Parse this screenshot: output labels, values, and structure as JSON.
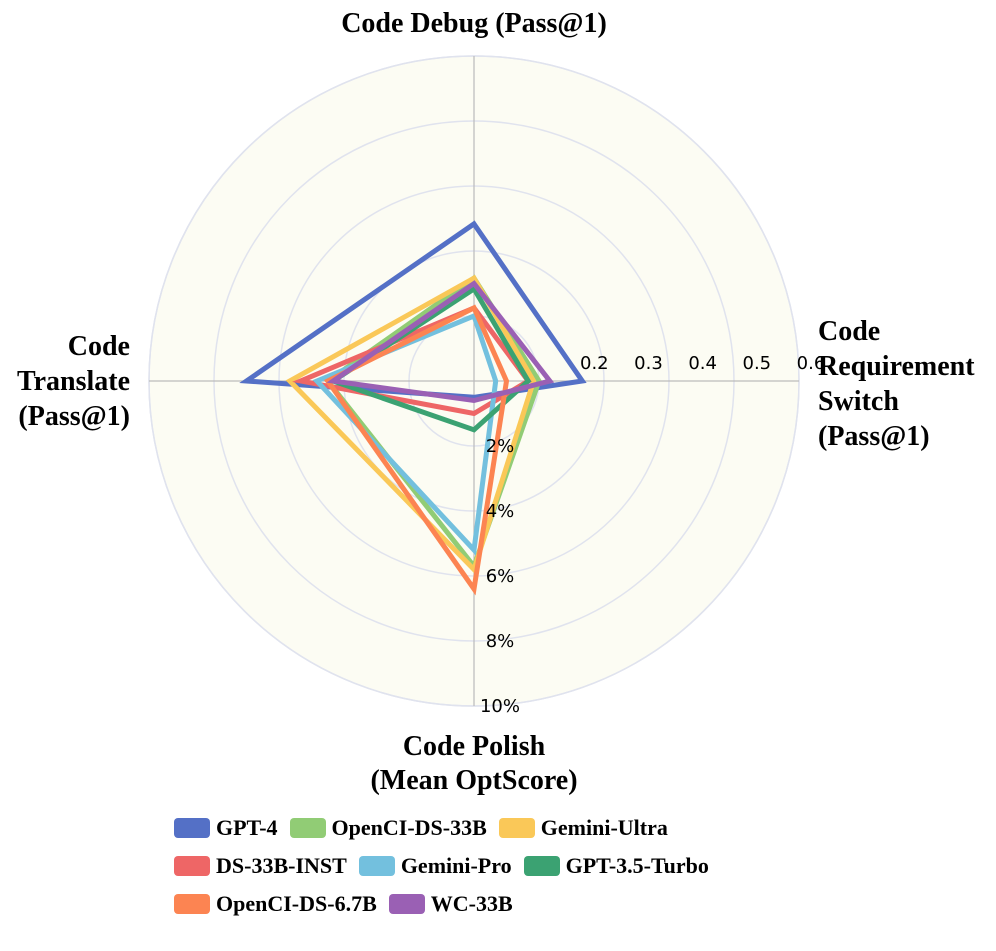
{
  "chart_data": {
    "type": "radar",
    "axes": [
      {
        "key": "debug",
        "label_lines": [
          "Code Debug (Pass@1)"
        ]
      },
      {
        "key": "switch",
        "label_lines": [
          "Code",
          "Requirement",
          "Switch",
          "(Pass@1)"
        ]
      },
      {
        "key": "polish",
        "label_lines": [
          "Code Polish",
          "(Mean OptScore)"
        ]
      },
      {
        "key": "translate",
        "label_lines": [
          "Code",
          "Translate",
          "(Pass@1)"
        ]
      }
    ],
    "radial_ticks_pass": [
      "0.2",
      "0.3",
      "0.4",
      "0.5",
      "0.6"
    ],
    "radial_ticks_polish": [
      "2%",
      "4%",
      "6%",
      "8%",
      "10%"
    ],
    "ranges": {
      "debug": [
        0,
        0.6
      ],
      "switch": [
        0,
        0.6
      ],
      "polish": [
        0,
        10
      ],
      "translate": [
        0,
        0.6
      ]
    },
    "series": [
      {
        "name": "GPT-4",
        "color": "#5470C6",
        "values": {
          "debug": 0.29,
          "switch": 0.2,
          "polish": 0.5,
          "translate": 0.42
        }
      },
      {
        "name": "OpenCI-DS-33B",
        "color": "#91CC75",
        "values": {
          "debug": 0.19,
          "switch": 0.12,
          "polish": 5.7,
          "translate": 0.27
        }
      },
      {
        "name": "Gemini-Ultra",
        "color": "#FAC858",
        "values": {
          "debug": 0.19,
          "switch": 0.11,
          "polish": 5.8,
          "translate": 0.34
        }
      },
      {
        "name": "DS-33B-INST",
        "color": "#EE6666",
        "values": {
          "debug": 0.135,
          "switch": 0.1,
          "polish": 1.0,
          "translate": 0.32
        }
      },
      {
        "name": "Gemini-Pro",
        "color": "#73C0DE",
        "values": {
          "debug": 0.12,
          "switch": 0.04,
          "polish": 5.2,
          "translate": 0.29
        }
      },
      {
        "name": "GPT-3.5-Turbo",
        "color": "#3BA272",
        "values": {
          "debug": 0.17,
          "switch": 0.1,
          "polish": 1.5,
          "translate": 0.26
        }
      },
      {
        "name": "OpenCI-DS-6.7B",
        "color": "#FC8452",
        "values": {
          "debug": 0.135,
          "switch": 0.06,
          "polish": 6.4,
          "translate": 0.27
        }
      },
      {
        "name": "WC-33B",
        "color": "#9A60B4",
        "values": {
          "debug": 0.18,
          "switch": 0.14,
          "polish": 0.6,
          "translate": 0.26
        }
      }
    ],
    "legend_rows": [
      [
        "GPT-4",
        "OpenCI-DS-33B",
        "Gemini-Ultra"
      ],
      [
        "DS-33B-INST",
        "Gemini-Pro",
        "GPT-3.5-Turbo"
      ],
      [
        "OpenCI-DS-6.7B",
        "WC-33B"
      ]
    ],
    "legend_placement": "bottom",
    "colors": {
      "plot_background": "#FCFCF3",
      "grid": "#E0E3EE",
      "axis": "#BBBBBB"
    }
  }
}
